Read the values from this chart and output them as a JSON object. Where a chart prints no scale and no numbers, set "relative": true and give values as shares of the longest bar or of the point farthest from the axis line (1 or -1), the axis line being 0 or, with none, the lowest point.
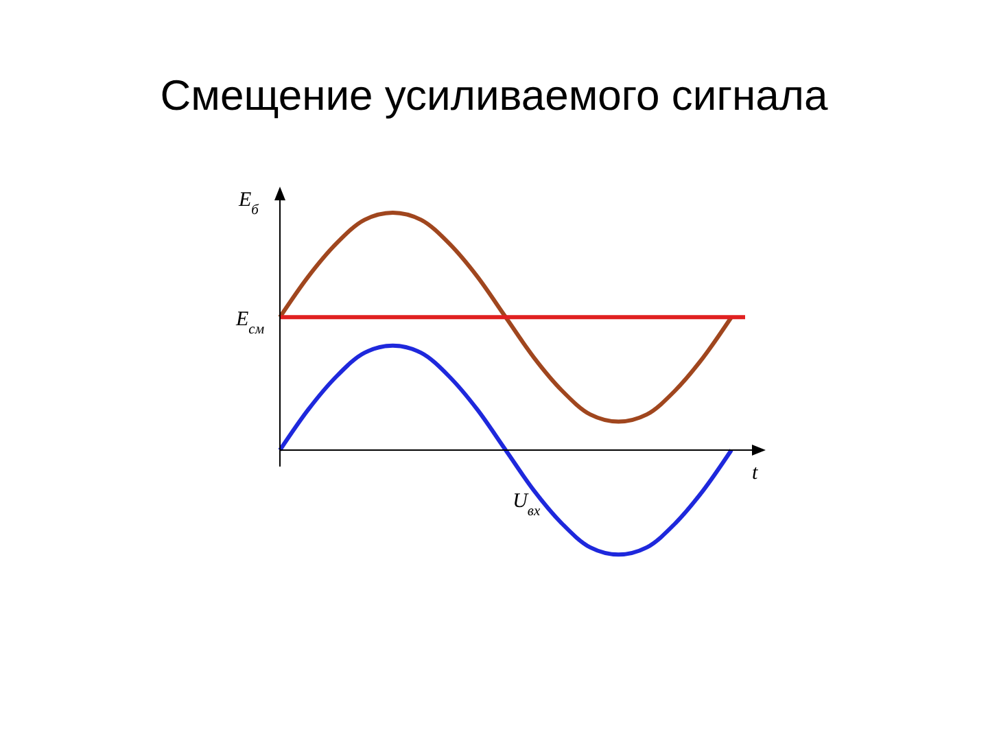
{
  "chart_data": {
    "type": "line",
    "title": "Смещение усиливаемого сигнала",
    "xlabel": "t",
    "ylabel": "E$_{б}$",
    "relative": true,
    "legend": false,
    "grid": false,
    "marker": "none",
    "line_style": "solid",
    "categories": [
      null,
      null,
      null,
      null,
      null,
      null,
      null,
      null,
      null,
      null,
      null,
      null,
      null,
      null,
      null,
      null,
      null
    ],
    "series": [
      {
        "color": "#a0461e",
        "values": [
          0.56,
          0.73,
          0.87,
          0.97,
          1.0,
          0.97,
          0.87,
          0.73,
          0.56,
          0.39,
          0.25,
          0.15,
          0.12,
          0.15,
          0.25,
          0.39,
          0.56
        ]
      },
      {
        "name": "U$_{вх}$",
        "color": "#1e28dc",
        "values": [
          0,
          0.17,
          0.31,
          0.41,
          0.44,
          0.41,
          0.31,
          0.17,
          0,
          -0.17,
          -0.31,
          -0.41,
          -0.44,
          -0.41,
          -0.31,
          -0.17,
          0
        ]
      }
    ],
    "ref_lines": [
      {
        "axis": "y",
        "value": 0.56,
        "label": "E$_{см}$",
        "color": "#e02020",
        "line_style": "solid"
      }
    ]
  }
}
